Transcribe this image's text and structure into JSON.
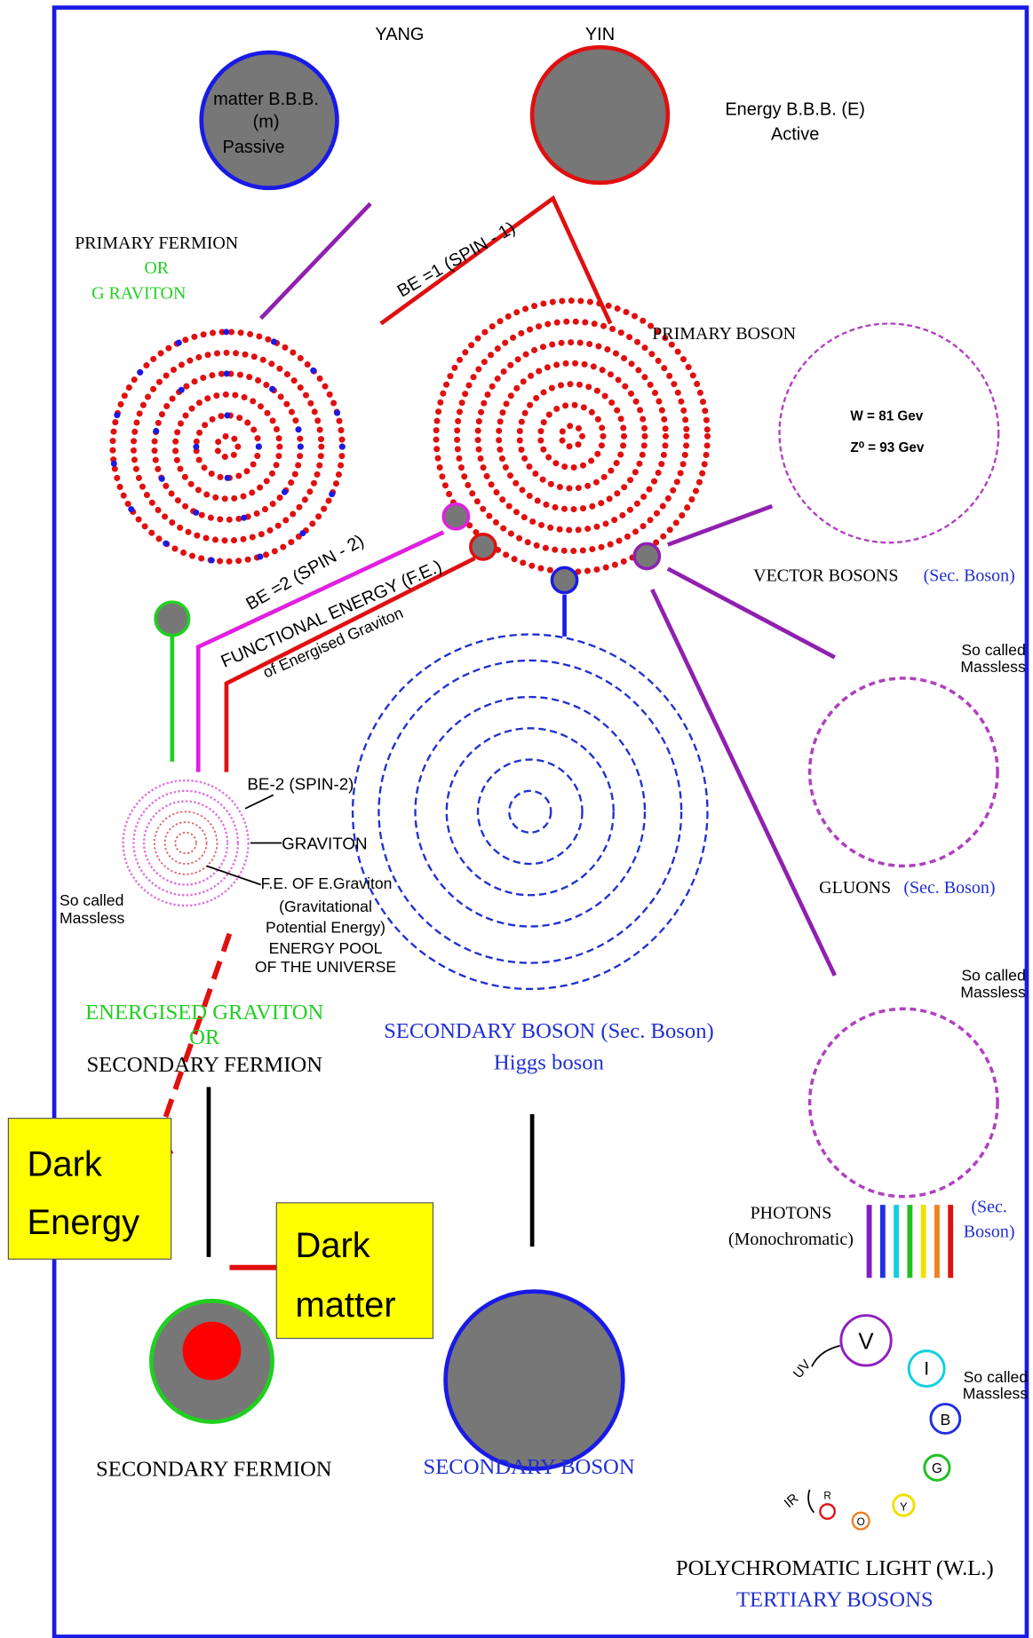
{
  "top": {
    "yang": "YANG",
    "yin": "YIN",
    "matter": [
      "matter B.B.B.",
      "(m)",
      "Passive"
    ],
    "energy": [
      "Energy B.B.B. (E)",
      "Active"
    ]
  },
  "primary_fermion": [
    "PRIMARY FERMION",
    "OR",
    "G RAVITON"
  ],
  "be1": "BE =1 (SPIN - 1)",
  "primary_boson": "PRIMARY BOSON",
  "vector": {
    "w": "W = 81 Gev",
    "z": "Z⁰ = 93 Gev",
    "label": "VECTOR BOSONS",
    "sec": "(Sec. Boson)"
  },
  "be2": "BE =2 (SPIN - 2)",
  "functional": [
    "FUNCTIONAL ENERGY (F.E.)",
    "of Energised Graviton"
  ],
  "gluons": {
    "so_called": [
      "So called",
      "Massless"
    ],
    "label": "GLUONS",
    "sec": "(Sec. Boson)"
  },
  "graviton_notes": [
    "BE-2 (SPIN-2)",
    "GRAVITON",
    "F.E. OF E.Graviton",
    "(Gravitational",
    "Potential Energy)",
    "ENERGY POOL",
    "OF THE UNIVERSE"
  ],
  "graviton_massless": [
    "So called",
    "Massless"
  ],
  "energised": [
    "ENERGISED GRAVITON",
    "OR",
    "SECONDARY FERMION"
  ],
  "higgs": [
    "SECONDARY BOSON (Sec. Boson)",
    "Higgs boson"
  ],
  "photons": {
    "so_called": [
      "So called",
      "Massless"
    ],
    "label": [
      "PHOTONS",
      "(Monochromatic)"
    ],
    "sec": [
      "(Sec.",
      "Boson)"
    ]
  },
  "dark_energy": [
    "Dark",
    "Energy"
  ],
  "dark_matter": [
    "Dark",
    "matter"
  ],
  "light": {
    "letters": [
      "V",
      "I",
      "B",
      "G",
      "Y",
      "O",
      "R"
    ],
    "uv": "UV",
    "ir": "IR",
    "so_called": [
      "So called",
      "Massless"
    ]
  },
  "bottom": {
    "fermion": "SECONDARY FERMION",
    "boson": "SECONDARY BOSON",
    "poly": "POLYCHROMATIC LIGHT (W.L.)",
    "tertiary": "TERTIARY BOSONS"
  }
}
